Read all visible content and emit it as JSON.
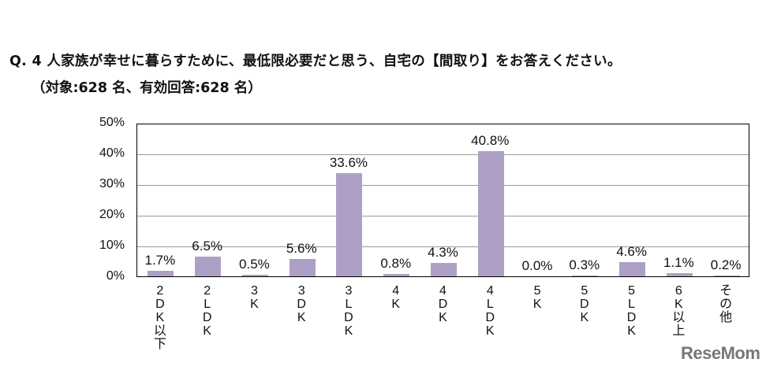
{
  "header": {
    "question": "Q. 4 人家族が幸せに暮らすために、最低限必要だと思う、自宅の【間取り】をお答えください。",
    "subtitle": "（対象:628 名、有効回答:628 名）"
  },
  "watermark": "ReseMom",
  "chart_data": {
    "type": "bar",
    "title": "Q. 4 人家族が幸せに暮らすために、最低限必要だと思う、自宅の【間取り】をお答えください。",
    "subtitle": "（対象:628 名、有効回答:628 名）",
    "categories": [
      "2DK以下",
      "2LDK",
      "3K",
      "3DK",
      "3LDK",
      "4K",
      "4DK",
      "4LDK",
      "5K",
      "5DK",
      "5LDK",
      "6K以上",
      "その他"
    ],
    "values": [
      1.7,
      6.5,
      0.5,
      5.6,
      33.6,
      0.8,
      4.3,
      40.8,
      0.0,
      0.3,
      4.6,
      1.1,
      0.2
    ],
    "value_labels": [
      "1.7%",
      "6.5%",
      "0.5%",
      "5.6%",
      "33.6%",
      "0.8%",
      "4.3%",
      "40.8%",
      "0.0%",
      "0.3%",
      "4.6%",
      "1.1%",
      "0.2%"
    ],
    "xlabel": "",
    "ylabel": "",
    "ylim": [
      0,
      50
    ],
    "yticks": [
      "0%",
      "10%",
      "20%",
      "30%",
      "40%",
      "50%"
    ],
    "grid": true,
    "legend": "none",
    "bar_color": "#ae9fc6"
  }
}
